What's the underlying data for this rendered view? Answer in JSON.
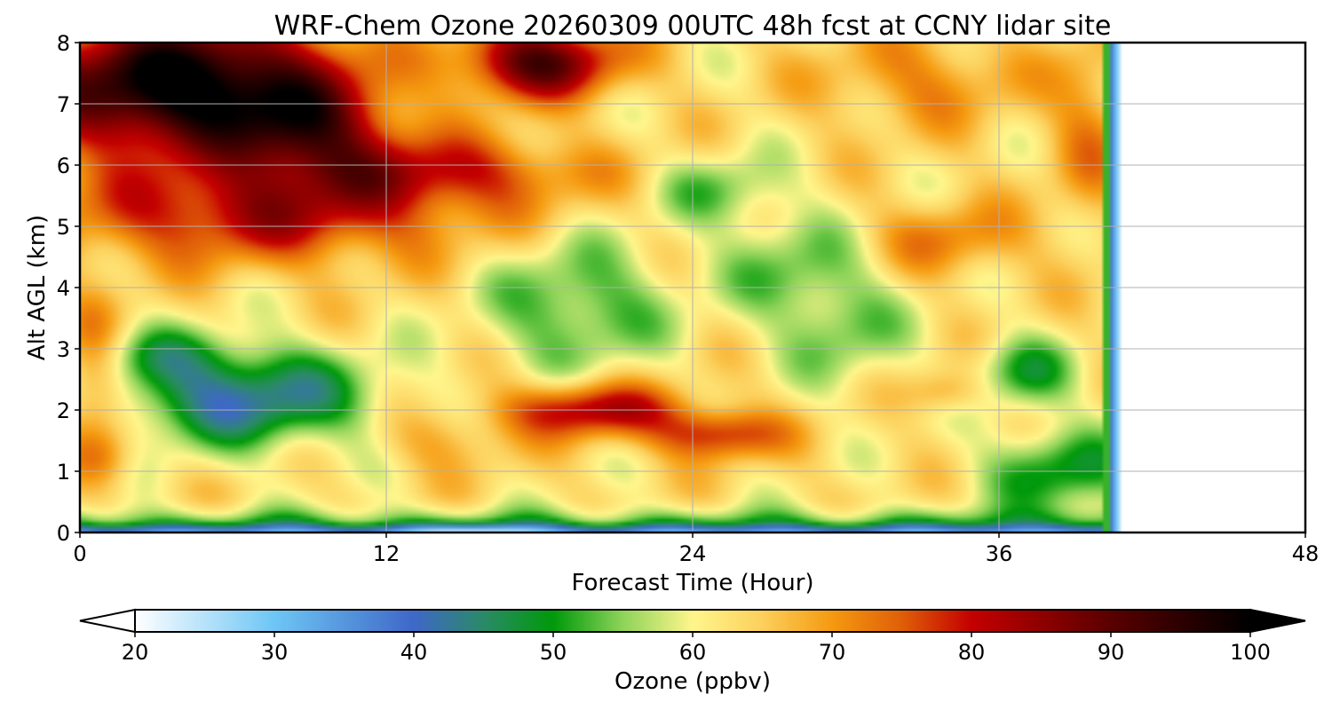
{
  "chart_data": {
    "type": "heatmap",
    "title": "WRF-Chem Ozone  20260309 00UTC 48h fcst at CCNY lidar site",
    "xlabel": "Forecast Time (Hour)",
    "ylabel": "Alt AGL (km)",
    "xlim": [
      0,
      48
    ],
    "ylim": [
      0,
      8
    ],
    "x_ticks": [
      0,
      12,
      24,
      36,
      48
    ],
    "y_ticks": [
      0,
      1,
      2,
      3,
      4,
      5,
      6,
      7,
      8
    ],
    "grid": true,
    "data_extent_hours": [
      0,
      40.4
    ],
    "x": [
      0,
      1,
      2,
      3,
      4,
      5,
      6,
      7,
      8,
      9,
      10,
      11,
      12,
      13,
      14,
      15,
      16,
      17,
      18,
      19,
      20,
      21,
      22,
      23,
      24,
      25,
      26,
      27,
      28,
      29,
      30,
      31,
      32,
      33,
      34,
      35,
      36,
      37,
      38,
      39,
      40
    ],
    "y": [
      0,
      0.25,
      0.5,
      0.75,
      1,
      1.25,
      1.5,
      1.75,
      2,
      2.25,
      2.5,
      2.75,
      3,
      3.25,
      3.5,
      3.75,
      4,
      4.25,
      4.5,
      4.75,
      5,
      5.25,
      5.5,
      5.75,
      6,
      6.25,
      6.5,
      6.75,
      7,
      7.25,
      7.5,
      7.75,
      8
    ],
    "z_features": [
      {
        "region": "surface layer",
        "x_range": [
          0,
          40
        ],
        "y_range": [
          0,
          0.15
        ],
        "ozone_ppbv": 38
      },
      {
        "region": "surface minimum",
        "x_range": [
          12,
          18
        ],
        "y_range": [
          0,
          0.15
        ],
        "ozone_ppbv": 25
      },
      {
        "region": "boundary layer",
        "x_range": [
          0,
          40
        ],
        "y_range": [
          0.15,
          0.6
        ],
        "ozone_ppbv": 50
      },
      {
        "region": "low green layer",
        "x_range": [
          2,
          12
        ],
        "y_range": [
          1.5,
          3.2
        ],
        "ozone_ppbv": 47
      },
      {
        "region": "elevated maximum",
        "x_range": [
          15,
          27
        ],
        "y_range": [
          1.2,
          2.4
        ],
        "ozone_ppbv": 81
      },
      {
        "region": "mid-level green band",
        "x_range": [
          17,
          35
        ],
        "y_range": [
          2.8,
          4.8
        ],
        "ozone_ppbv": 53
      },
      {
        "region": "upper red layer",
        "x_range": [
          0,
          18
        ],
        "y_range": [
          4.5,
          6.5
        ],
        "ozone_ppbv": 82
      },
      {
        "region": "upper black maximum",
        "x_range": [
          0,
          11
        ],
        "y_range": [
          5.7,
          8
        ],
        "ozone_ppbv": 100
      },
      {
        "region": "upper orange band",
        "x_range": [
          30,
          40
        ],
        "y_range": [
          4.5,
          5.5
        ],
        "ozone_ppbv": 72
      },
      {
        "region": "late low green",
        "x_range": [
          32,
          40
        ],
        "y_range": [
          0.3,
          2.0
        ],
        "ozone_ppbv": 50
      }
    ],
    "colorbar": {
      "label": "Ozone  (ppbv)",
      "min": 20,
      "max": 100,
      "ticks": [
        20,
        30,
        40,
        50,
        60,
        70,
        80,
        90,
        100
      ],
      "extend": "both",
      "colors": [
        {
          "v": 20,
          "c": "#ffffff"
        },
        {
          "v": 30,
          "c": "#6ec6f5"
        },
        {
          "v": 40,
          "c": "#3f68c8"
        },
        {
          "v": 45,
          "c": "#2b8a68"
        },
        {
          "v": 50,
          "c": "#009a0a"
        },
        {
          "v": 55,
          "c": "#8fd45a"
        },
        {
          "v": 60,
          "c": "#fff68c"
        },
        {
          "v": 65,
          "c": "#fcd05c"
        },
        {
          "v": 70,
          "c": "#f59a10"
        },
        {
          "v": 75,
          "c": "#e05f08"
        },
        {
          "v": 80,
          "c": "#c40000"
        },
        {
          "v": 90,
          "c": "#5a0000"
        },
        {
          "v": 100,
          "c": "#000000"
        }
      ]
    }
  }
}
